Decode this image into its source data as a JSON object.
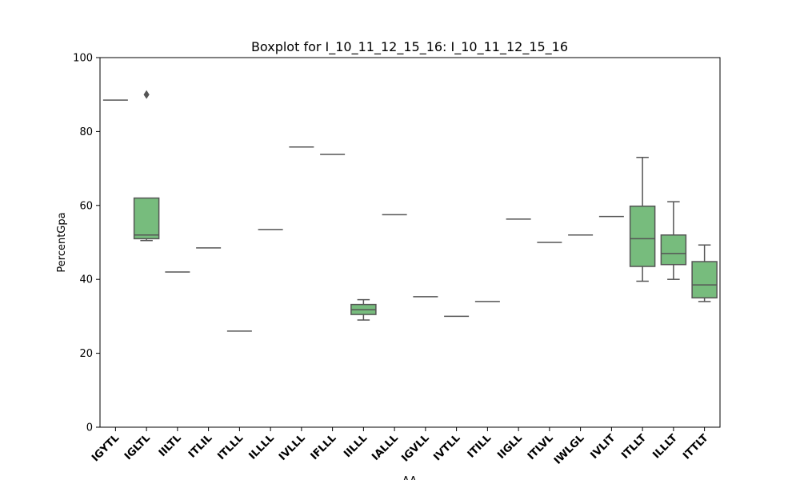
{
  "chart_data": {
    "type": "box",
    "title": "Boxplot for I_10_11_12_15_16: I_10_11_12_15_16",
    "xlabel": "AA",
    "ylabel": "PercentGpa",
    "ylim": [
      0,
      100
    ],
    "yticks": [
      0,
      20,
      40,
      60,
      80,
      100
    ],
    "grid": false,
    "box_color": "#77bc7d",
    "line_color": "#555555",
    "categories": [
      "IGYTL",
      "IGLTL",
      "IILTL",
      "ITLIL",
      "ITLLL",
      "ILLLL",
      "IVLLL",
      "IFLLL",
      "IILLL",
      "IALLL",
      "IGVLL",
      "IVTLL",
      "ITILL",
      "IIGLL",
      "ITLVL",
      "IWLGL",
      "IVLIT",
      "ITLLT",
      "ILLLT",
      "ITTLT"
    ],
    "boxes": [
      {
        "min": 88.5,
        "q1": 88.5,
        "median": 88.5,
        "q3": 88.5,
        "max": 88.5,
        "outliers": []
      },
      {
        "min": 50.5,
        "q1": 51,
        "median": 52,
        "q3": 62,
        "max": 62,
        "outliers": [
          90
        ]
      },
      {
        "min": 42,
        "q1": 42,
        "median": 42,
        "q3": 42,
        "max": 42,
        "outliers": []
      },
      {
        "min": 48.5,
        "q1": 48.5,
        "median": 48.5,
        "q3": 48.5,
        "max": 48.5,
        "outliers": []
      },
      {
        "min": 26,
        "q1": 26,
        "median": 26,
        "q3": 26,
        "max": 26,
        "outliers": []
      },
      {
        "min": 53.5,
        "q1": 53.5,
        "median": 53.5,
        "q3": 53.5,
        "max": 53.5,
        "outliers": []
      },
      {
        "min": 75.8,
        "q1": 75.8,
        "median": 75.8,
        "q3": 75.8,
        "max": 75.8,
        "outliers": []
      },
      {
        "min": 73.8,
        "q1": 73.8,
        "median": 73.8,
        "q3": 73.8,
        "max": 73.8,
        "outliers": []
      },
      {
        "min": 29,
        "q1": 30.5,
        "median": 31.8,
        "q3": 33.2,
        "max": 34.5,
        "outliers": []
      },
      {
        "min": 57.5,
        "q1": 57.5,
        "median": 57.5,
        "q3": 57.5,
        "max": 57.5,
        "outliers": []
      },
      {
        "min": 35.3,
        "q1": 35.3,
        "median": 35.3,
        "q3": 35.3,
        "max": 35.3,
        "outliers": []
      },
      {
        "min": 30,
        "q1": 30,
        "median": 30,
        "q3": 30,
        "max": 30,
        "outliers": []
      },
      {
        "min": 34,
        "q1": 34,
        "median": 34,
        "q3": 34,
        "max": 34,
        "outliers": []
      },
      {
        "min": 56.3,
        "q1": 56.3,
        "median": 56.3,
        "q3": 56.3,
        "max": 56.3,
        "outliers": []
      },
      {
        "min": 50,
        "q1": 50,
        "median": 50,
        "q3": 50,
        "max": 50,
        "outliers": []
      },
      {
        "min": 52,
        "q1": 52,
        "median": 52,
        "q3": 52,
        "max": 52,
        "outliers": []
      },
      {
        "min": 57,
        "q1": 57,
        "median": 57,
        "q3": 57,
        "max": 57,
        "outliers": []
      },
      {
        "min": 39.5,
        "q1": 43.5,
        "median": 51,
        "q3": 59.8,
        "max": 73,
        "outliers": []
      },
      {
        "min": 40,
        "q1": 44,
        "median": 47,
        "q3": 52,
        "max": 61,
        "outliers": []
      },
      {
        "min": 34,
        "q1": 35,
        "median": 38.5,
        "q3": 44.8,
        "max": 49.3,
        "outliers": []
      }
    ]
  }
}
